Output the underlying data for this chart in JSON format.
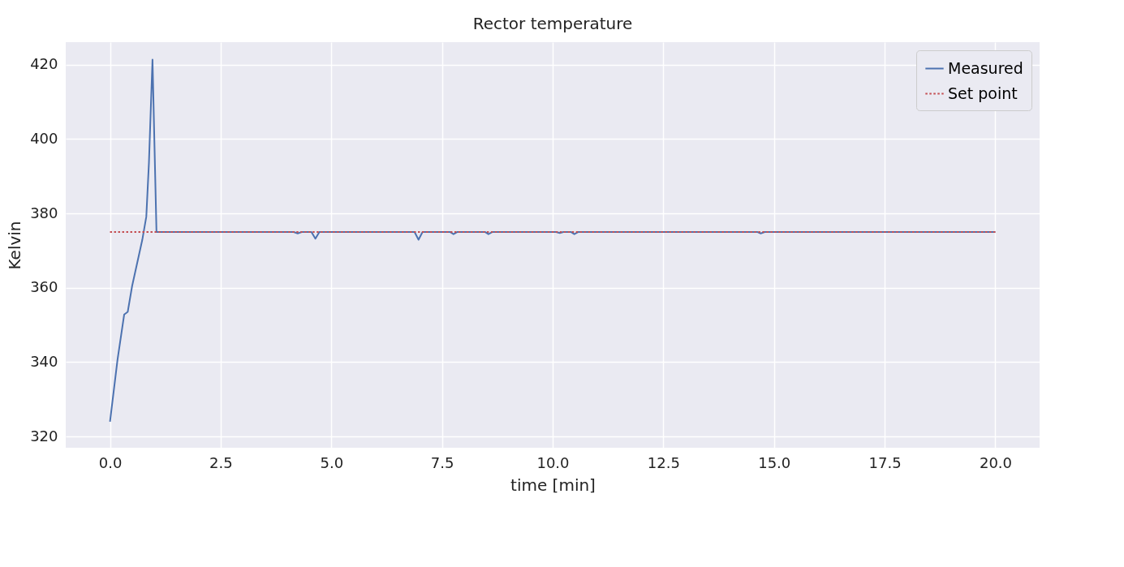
{
  "chart_data": {
    "type": "line",
    "title": "Rector temperature",
    "xlabel": "time [min]",
    "ylabel": "Kelvin",
    "xlim": [
      -1,
      21
    ],
    "ylim": [
      317,
      426
    ],
    "xticks": [
      {
        "value": 0,
        "label": "0.0"
      },
      {
        "value": 2.5,
        "label": "2.5"
      },
      {
        "value": 5,
        "label": "5.0"
      },
      {
        "value": 7.5,
        "label": "7.5"
      },
      {
        "value": 10,
        "label": "10.0"
      },
      {
        "value": 12.5,
        "label": "12.5"
      },
      {
        "value": 15,
        "label": "15.0"
      },
      {
        "value": 17.5,
        "label": "17.5"
      },
      {
        "value": 20,
        "label": "20.0"
      }
    ],
    "yticks": [
      320,
      340,
      360,
      380,
      400,
      420
    ],
    "grid": true,
    "legend": "top right",
    "series": [
      {
        "name": "Measured",
        "color": "#4c72b0",
        "line_style": "solid",
        "x": [
          0,
          0.17,
          0.32,
          0.4,
          0.5,
          0.73,
          0.82,
          0.88,
          0.96,
          1.05,
          4.15,
          4.24,
          4.33,
          4.55,
          4.64,
          4.73,
          6.88,
          6.97,
          7.06,
          7.68,
          7.76,
          7.85,
          8.47,
          8.55,
          8.64,
          10.08,
          10.16,
          10.24,
          10.41,
          10.49,
          10.58,
          14.62,
          14.7,
          14.79,
          20
        ],
        "values": [
          324,
          340.7,
          352.8,
          353.5,
          360.5,
          372.9,
          379.1,
          393.7,
          421.3,
          375,
          375,
          374.6,
          375,
          375,
          373.2,
          375,
          375,
          372.9,
          375,
          375,
          374.4,
          375,
          375,
          374.4,
          375,
          375,
          374.7,
          375,
          375,
          374.4,
          375,
          375,
          374.6,
          375,
          375
        ]
      },
      {
        "name": "Set point",
        "color": "#c44e52",
        "line_style": "dotted",
        "x": [
          0,
          20
        ],
        "values": [
          375,
          375
        ]
      }
    ]
  }
}
